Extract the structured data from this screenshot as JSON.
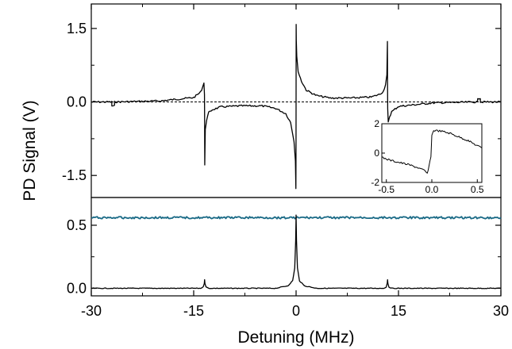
{
  "chart_data": [
    {
      "id": "top",
      "type": "line",
      "title": "",
      "xlim": [
        -30,
        30
      ],
      "ylim": [
        -1.95,
        2.0
      ],
      "yticks": [
        -1.5,
        0.0,
        1.5
      ],
      "ytick_labels": [
        "-1.5",
        "0.0",
        "1.5"
      ],
      "baseline": 0.0,
      "series": [
        {
          "color": "#000000",
          "x": [
            -30,
            -27.0,
            -26.99,
            -26.6,
            -26.59,
            -20,
            -15,
            -14,
            -13.7,
            -13.5,
            -13.42,
            -13.4,
            -13.38,
            -13.3,
            -13.1,
            -12.8,
            -12.3,
            -11,
            -8,
            -5,
            -3,
            -1.5,
            -0.8,
            -0.3,
            -0.1,
            -0.03,
            -0.01,
            0.0,
            0.01,
            0.03,
            0.1,
            0.3,
            0.8,
            1.5,
            3,
            5,
            8,
            11,
            12.3,
            12.8,
            13.1,
            13.3,
            13.38,
            13.4,
            13.42,
            13.5,
            13.7,
            14,
            15,
            20,
            26.59,
            26.6,
            26.99,
            27.0,
            30
          ],
          "y": [
            0.0,
            0.0,
            -0.08,
            -0.08,
            0.0,
            0.02,
            0.09,
            0.2,
            0.3,
            0.4,
            0.15,
            -0.3,
            -1.3,
            -0.55,
            -0.36,
            -0.22,
            -0.16,
            -0.1,
            -0.08,
            -0.08,
            -0.13,
            -0.24,
            -0.42,
            -0.8,
            -1.2,
            -1.75,
            -1.0,
            0.2,
            1.58,
            1.25,
            0.95,
            0.62,
            0.42,
            0.24,
            0.13,
            0.08,
            0.08,
            0.1,
            0.16,
            0.22,
            0.36,
            0.55,
            1.22,
            0.3,
            -0.15,
            -0.4,
            -0.3,
            -0.2,
            -0.09,
            -0.02,
            0.0,
            0.08,
            0.08,
            0.0,
            0.0
          ]
        }
      ]
    },
    {
      "id": "bottom",
      "type": "line",
      "title": "",
      "xlim": [
        -30,
        30
      ],
      "ylim": [
        -0.06,
        0.72
      ],
      "yticks": [
        0.0,
        0.5
      ],
      "ytick_labels": [
        "0.0",
        "0.5"
      ],
      "xticks": [
        -30,
        -15,
        0,
        15,
        30
      ],
      "xtick_labels": [
        "-30",
        "-15",
        "0",
        "15",
        "30"
      ],
      "xlabel": "Detuning (MHz)",
      "series": [
        {
          "color": "#1a6a86",
          "x": [
            -30,
            30
          ],
          "y": [
            0.56,
            0.56
          ]
        },
        {
          "color": "#000000",
          "x": [
            -30,
            -14.0,
            -13.6,
            -13.45,
            -13.4,
            -13.35,
            -13.2,
            -12.8,
            -3,
            -1.2,
            -0.5,
            -0.2,
            -0.06,
            0.0,
            0.06,
            0.2,
            0.5,
            1.2,
            3,
            12.8,
            13.2,
            13.35,
            13.4,
            13.45,
            13.6,
            14.0,
            30
          ],
          "y": [
            0.0,
            0.0,
            0.01,
            0.04,
            0.07,
            0.04,
            0.01,
            0.0,
            0.0,
            0.02,
            0.06,
            0.16,
            0.38,
            0.58,
            0.38,
            0.16,
            0.06,
            0.02,
            0.0,
            0.0,
            0.01,
            0.04,
            0.07,
            0.04,
            0.01,
            0.0,
            0.0
          ]
        }
      ]
    },
    {
      "id": "inset",
      "type": "line",
      "title": "",
      "xlim": [
        -0.55,
        0.55
      ],
      "ylim": [
        -2,
        2
      ],
      "xticks": [
        -0.5,
        0.0,
        0.5
      ],
      "xtick_labels": [
        "-0.5",
        "0.0",
        "0.5"
      ],
      "yticks": [
        -2,
        0,
        2
      ],
      "ytick_labels": [
        "-2",
        "0",
        "2"
      ],
      "series": [
        {
          "color": "#000000",
          "x": [
            -0.55,
            -0.45,
            -0.35,
            -0.25,
            -0.15,
            -0.08,
            -0.05,
            -0.03,
            -0.01,
            0.0,
            0.02,
            0.1,
            0.2,
            0.3,
            0.4,
            0.5,
            0.55
          ],
          "y": [
            -0.3,
            -0.5,
            -0.65,
            -0.8,
            -1.0,
            -1.2,
            -1.4,
            -0.9,
            -0.2,
            1.2,
            1.55,
            1.5,
            1.35,
            1.1,
            0.85,
            0.5,
            0.35
          ]
        }
      ]
    }
  ],
  "figure": {
    "ylabel": "PD Signal (V)"
  }
}
